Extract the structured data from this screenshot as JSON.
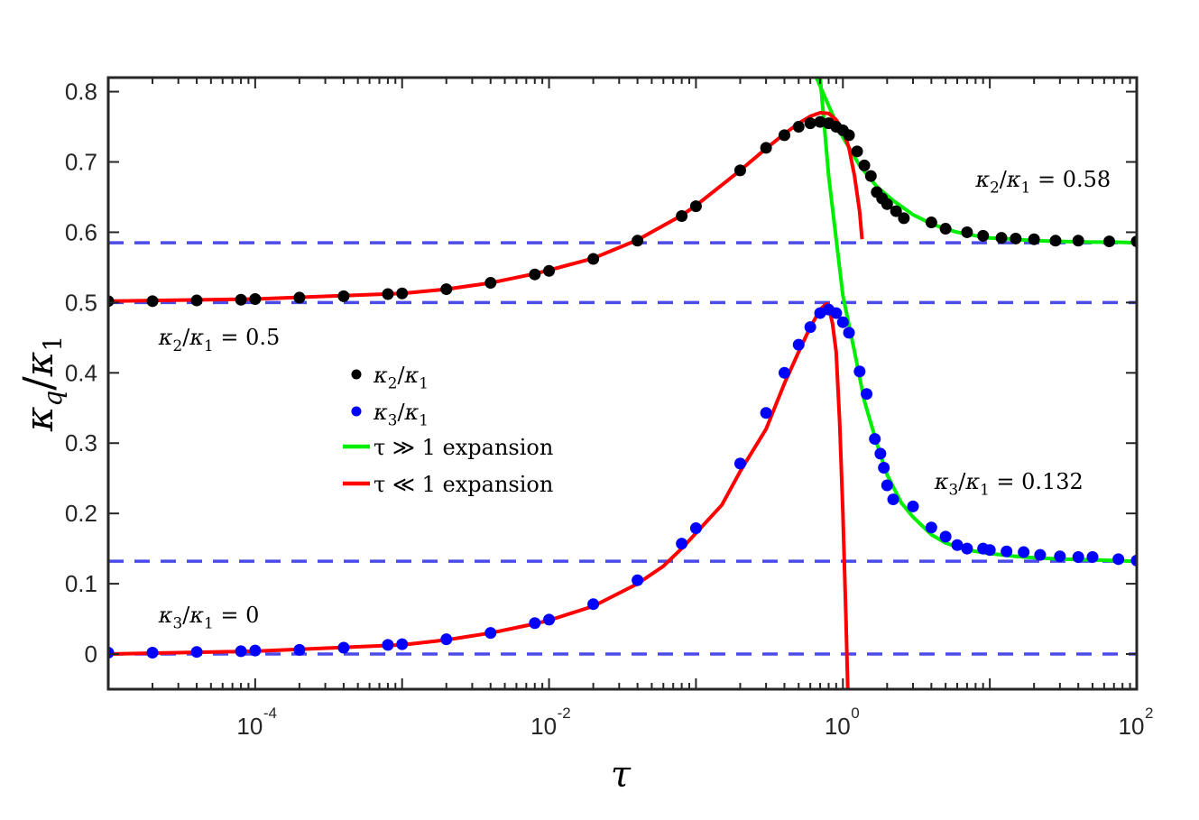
{
  "chart_data": {
    "type": "scatter",
    "title": "",
    "xlabel": "τ",
    "ylabel": "κq/κ1",
    "xscale": "log",
    "xlim": [
      1e-05,
      100
    ],
    "ylim": [
      -0.05,
      0.82
    ],
    "grid": false,
    "legend_position": "center-left",
    "x_ticks": [
      {
        "base": "10",
        "exp": "-4",
        "value": 0.0001
      },
      {
        "base": "10",
        "exp": "-2",
        "value": 0.01
      },
      {
        "base": "10",
        "exp": "0",
        "value": 1
      },
      {
        "base": "10",
        "exp": "2",
        "value": 100
      }
    ],
    "y_ticks": [
      "0",
      "0.1",
      "0.2",
      "0.3",
      "0.4",
      "0.5",
      "0.6",
      "0.7",
      "0.8"
    ],
    "reference_lines": [
      0.0,
      0.132,
      0.5,
      0.585
    ],
    "series": [
      {
        "name": "κ2/κ1",
        "kind": "markers",
        "color": "#000000",
        "points": [
          [
            1e-05,
            0.502
          ],
          [
            2e-05,
            0.502
          ],
          [
            4e-05,
            0.503
          ],
          [
            8e-05,
            0.504
          ],
          [
            0.0001,
            0.505
          ],
          [
            0.0002,
            0.507
          ],
          [
            0.0004,
            0.509
          ],
          [
            0.0008,
            0.512
          ],
          [
            0.001,
            0.513
          ],
          [
            0.002,
            0.519
          ],
          [
            0.004,
            0.528
          ],
          [
            0.008,
            0.54
          ],
          [
            0.01,
            0.545
          ],
          [
            0.02,
            0.562
          ],
          [
            0.04,
            0.588
          ],
          [
            0.08,
            0.623
          ],
          [
            0.1,
            0.637
          ],
          [
            0.2,
            0.688
          ],
          [
            0.3,
            0.72
          ],
          [
            0.4,
            0.738
          ],
          [
            0.5,
            0.75
          ],
          [
            0.6,
            0.755
          ],
          [
            0.7,
            0.757
          ],
          [
            0.8,
            0.755
          ],
          [
            0.9,
            0.75
          ],
          [
            1.0,
            0.745
          ],
          [
            1.1,
            0.738
          ],
          [
            1.25,
            0.715
          ],
          [
            1.4,
            0.695
          ],
          [
            1.55,
            0.68
          ],
          [
            1.7,
            0.657
          ],
          [
            1.85,
            0.648
          ],
          [
            2.0,
            0.64
          ],
          [
            2.3,
            0.63
          ],
          [
            2.6,
            0.62
          ],
          [
            4,
            0.614
          ],
          [
            5,
            0.605
          ],
          [
            7,
            0.6
          ],
          [
            9,
            0.595
          ],
          [
            12,
            0.592
          ],
          [
            15,
            0.591
          ],
          [
            20,
            0.59
          ],
          [
            28,
            0.588
          ],
          [
            40,
            0.588
          ],
          [
            65,
            0.587
          ],
          [
            100,
            0.587
          ]
        ]
      },
      {
        "name": "κ3/κ1",
        "kind": "markers",
        "color": "#0000ff",
        "points": [
          [
            1e-05,
            0.002
          ],
          [
            2e-05,
            0.002
          ],
          [
            4e-05,
            0.003
          ],
          [
            8e-05,
            0.004
          ],
          [
            0.0001,
            0.005
          ],
          [
            0.0002,
            0.006
          ],
          [
            0.0004,
            0.009
          ],
          [
            0.0008,
            0.013
          ],
          [
            0.001,
            0.014
          ],
          [
            0.002,
            0.021
          ],
          [
            0.004,
            0.03
          ],
          [
            0.008,
            0.044
          ],
          [
            0.01,
            0.049
          ],
          [
            0.02,
            0.071
          ],
          [
            0.04,
            0.105
          ],
          [
            0.08,
            0.157
          ],
          [
            0.1,
            0.179
          ],
          [
            0.2,
            0.271
          ],
          [
            0.3,
            0.343
          ],
          [
            0.4,
            0.4
          ],
          [
            0.5,
            0.44
          ],
          [
            0.6,
            0.465
          ],
          [
            0.7,
            0.485
          ],
          [
            0.8,
            0.49
          ],
          [
            0.9,
            0.485
          ],
          [
            1.0,
            0.472
          ],
          [
            1.1,
            0.457
          ],
          [
            1.3,
            0.402
          ],
          [
            1.45,
            0.37
          ],
          [
            1.65,
            0.306
          ],
          [
            1.8,
            0.285
          ],
          [
            1.9,
            0.265
          ],
          [
            2.0,
            0.24
          ],
          [
            2.2,
            0.22
          ],
          [
            3,
            0.21
          ],
          [
            4,
            0.18
          ],
          [
            5,
            0.167
          ],
          [
            6,
            0.155
          ],
          [
            7,
            0.15
          ],
          [
            9,
            0.15
          ],
          [
            10,
            0.148
          ],
          [
            13,
            0.146
          ],
          [
            17,
            0.145
          ],
          [
            22,
            0.141
          ],
          [
            30,
            0.139
          ],
          [
            40,
            0.138
          ],
          [
            50,
            0.138
          ],
          [
            75,
            0.135
          ],
          [
            100,
            0.133
          ]
        ]
      },
      {
        "name": "τ ≫ 1 expansion",
        "kind": "line",
        "color": "#00ee00",
        "upper": {
          "points": [
            [
              0.66,
              0.82
            ],
            [
              0.8,
              0.78
            ],
            [
              1.0,
              0.735
            ],
            [
              1.3,
              0.695
            ],
            [
              1.7,
              0.665
            ],
            [
              2.2,
              0.645
            ],
            [
              3,
              0.625
            ],
            [
              4,
              0.612
            ],
            [
              5,
              0.605
            ],
            [
              6,
              0.6
            ],
            [
              8,
              0.595
            ],
            [
              10,
              0.592
            ],
            [
              15,
              0.59
            ],
            [
              20,
              0.588
            ],
            [
              30,
              0.587
            ],
            [
              50,
              0.586
            ],
            [
              70,
              0.586
            ],
            [
              100,
              0.585
            ]
          ]
        },
        "lower": {
          "points": [
            [
              0.7,
              0.82
            ],
            [
              0.8,
              0.68
            ],
            [
              1.0,
              0.51
            ],
            [
              1.2,
              0.43
            ],
            [
              1.4,
              0.36
            ],
            [
              1.7,
              0.3
            ],
            [
              2.0,
              0.255
            ],
            [
              2.5,
              0.215
            ],
            [
              3,
              0.195
            ],
            [
              4,
              0.17
            ],
            [
              5,
              0.158
            ],
            [
              7,
              0.148
            ],
            [
              10,
              0.143
            ],
            [
              15,
              0.139
            ],
            [
              20,
              0.137
            ],
            [
              30,
              0.135
            ],
            [
              50,
              0.134
            ],
            [
              70,
              0.133
            ],
            [
              100,
              0.132
            ]
          ]
        }
      },
      {
        "name": "τ ≪ 1 expansion",
        "kind": "line",
        "color": "#ff0000",
        "upper": {
          "points": [
            [
              1e-05,
              0.502
            ],
            [
              0.0001,
              0.505
            ],
            [
              0.001,
              0.513
            ],
            [
              0.002,
              0.519
            ],
            [
              0.004,
              0.528
            ],
            [
              0.008,
              0.541
            ],
            [
              0.01,
              0.546
            ],
            [
              0.02,
              0.563
            ],
            [
              0.04,
              0.589
            ],
            [
              0.08,
              0.624
            ],
            [
              0.1,
              0.638
            ],
            [
              0.2,
              0.688
            ],
            [
              0.3,
              0.719
            ],
            [
              0.4,
              0.74
            ],
            [
              0.5,
              0.755
            ],
            [
              0.6,
              0.765
            ],
            [
              0.7,
              0.77
            ],
            [
              0.8,
              0.769
            ],
            [
              0.9,
              0.76
            ],
            [
              1.0,
              0.745
            ],
            [
              1.1,
              0.72
            ],
            [
              1.2,
              0.68
            ],
            [
              1.3,
              0.63
            ],
            [
              1.35,
              0.59
            ]
          ]
        },
        "lower": {
          "points": [
            [
              1e-05,
              0.0
            ],
            [
              0.0001,
              0.004
            ],
            [
              0.001,
              0.013
            ],
            [
              0.002,
              0.02
            ],
            [
              0.004,
              0.03
            ],
            [
              0.008,
              0.043
            ],
            [
              0.01,
              0.048
            ],
            [
              0.02,
              0.068
            ],
            [
              0.04,
              0.1
            ],
            [
              0.06,
              0.125
            ],
            [
              0.08,
              0.15
            ],
            [
              0.1,
              0.172
            ],
            [
              0.15,
              0.212
            ],
            [
              0.2,
              0.26
            ],
            [
              0.3,
              0.32
            ],
            [
              0.4,
              0.385
            ],
            [
              0.5,
              0.43
            ],
            [
              0.6,
              0.465
            ],
            [
              0.7,
              0.49
            ],
            [
              0.75,
              0.496
            ],
            [
              0.78,
              0.498
            ],
            [
              0.8,
              0.495
            ],
            [
              0.85,
              0.47
            ],
            [
              0.9,
              0.43
            ],
            [
              0.95,
              0.33
            ],
            [
              1.0,
              0.2
            ],
            [
              1.05,
              0.05
            ],
            [
              1.08,
              -0.05
            ]
          ]
        }
      }
    ],
    "annotations": [
      {
        "num": "κ",
        "num_sub": "2",
        "den": "κ",
        "den_sub": "1",
        "value": "0.58",
        "x": 8,
        "y": 0.665
      },
      {
        "num": "κ",
        "num_sub": "2",
        "den": "κ",
        "den_sub": "1",
        "value": "0.5",
        "x": 2.2e-05,
        "y": 0.44
      },
      {
        "num": "κ",
        "num_sub": "3",
        "den": "κ",
        "den_sub": "1",
        "value": "0.132",
        "x": 4.2,
        "y": 0.235
      },
      {
        "num": "κ",
        "num_sub": "3",
        "den": "κ",
        "den_sub": "1",
        "value": "0",
        "x": 2.2e-05,
        "y": 0.045
      }
    ]
  }
}
